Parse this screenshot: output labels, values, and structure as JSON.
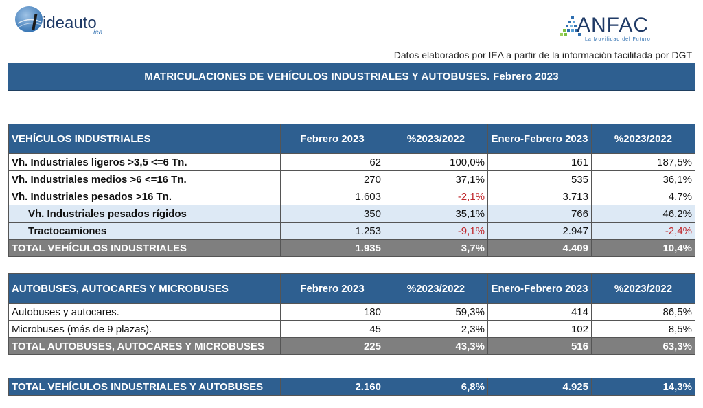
{
  "header": {
    "logo_left_text": "ideauto",
    "logo_left_sub": "iea",
    "logo_right_text": "ANFAC",
    "logo_right_sub": "La Movilidad del Futuro",
    "source_note": "Datos elaborados por IEA a partir de la información facilitada por DGT",
    "title": "MATRICULACIONES DE VEHÍCULOS INDUSTRIALES Y AUTOBUSES.  Febrero 2023"
  },
  "colors": {
    "header_blue": "#2e5f90",
    "total_gray": "#7f7f7f",
    "subrow_blue": "#dde9f5",
    "negative_red": "#c0262b"
  },
  "industrial": {
    "headers": [
      "VEHÍCULOS INDUSTRIALES",
      "Febrero 2023",
      "%2023/2022",
      "Enero-Febrero 2023",
      "%2023/2022"
    ],
    "rows": [
      {
        "label": "Vh. Industriales ligeros >3,5 <=6 Tn.",
        "feb": "62",
        "pct1": "100,0%",
        "ytd": "161",
        "pct2": "187,5%"
      },
      {
        "label": "Vh. Industriales medios >6  <=16 Tn.",
        "feb": "270",
        "pct1": "37,1%",
        "ytd": "535",
        "pct2": "36,1%"
      },
      {
        "label": "Vh. Industriales  pesados >16 Tn.",
        "feb": "1.603",
        "pct1": "-2,1%",
        "ytd": "3.713",
        "pct2": "4,7%"
      },
      {
        "label": "Vh. Industriales pesados rígidos",
        "feb": "350",
        "pct1": "35,1%",
        "ytd": "766",
        "pct2": "46,2%"
      },
      {
        "label": "Tractocamiones",
        "feb": "1.253",
        "pct1": "-9,1%",
        "ytd": "2.947",
        "pct2": "-2,4%"
      }
    ],
    "total": {
      "label": "TOTAL VEHÍCULOS INDUSTRIALES",
      "feb": "1.935",
      "pct1": "3,7%",
      "ytd": "4.409",
      "pct2": "10,4%"
    }
  },
  "buses": {
    "headers": [
      "AUTOBUSES, AUTOCARES Y MICROBUSES",
      "Febrero 2023",
      "%2023/2022",
      "Enero-Febrero 2023",
      "%2023/2022"
    ],
    "rows": [
      {
        "label": "Autobuses y autocares.",
        "feb": "180",
        "pct1": "59,3%",
        "ytd": "414",
        "pct2": "86,5%"
      },
      {
        "label": "Microbuses (más de 9 plazas).",
        "feb": "45",
        "pct1": "2,3%",
        "ytd": "102",
        "pct2": "8,5%"
      }
    ],
    "total": {
      "label": "TOTAL AUTOBUSES, AUTOCARES Y MICROBUSES",
      "feb": "225",
      "pct1": "43,3%",
      "ytd": "516",
      "pct2": "63,3%"
    }
  },
  "grand_total": {
    "label": "TOTAL VEHÍCULOS INDUSTRIALES Y AUTOBUSES",
    "feb": "2.160",
    "pct1": "6,8%",
    "ytd": "4.925",
    "pct2": "14,3%"
  }
}
